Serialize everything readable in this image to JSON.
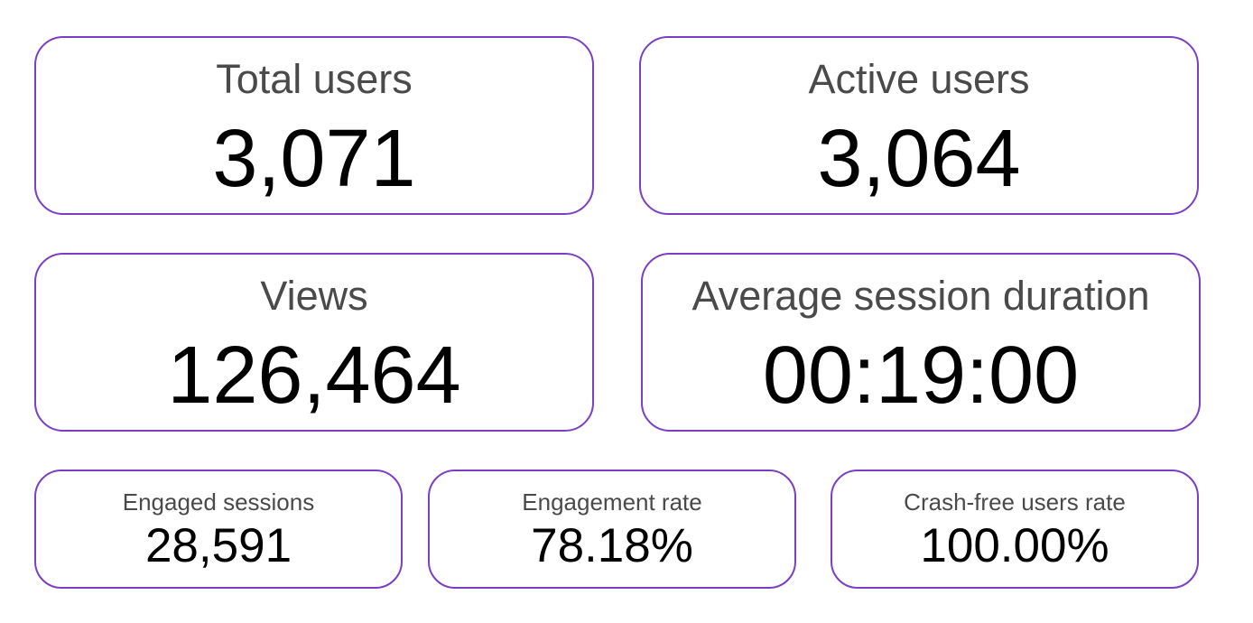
{
  "metrics": {
    "total_users": {
      "label": "Total users",
      "value": "3,071"
    },
    "active_users": {
      "label": "Active users",
      "value": "3,064"
    },
    "views": {
      "label": "Views",
      "value": "126,464"
    },
    "average_session_duration": {
      "label": "Average session duration",
      "value": "00:19:00"
    },
    "engaged_sessions": {
      "label": "Engaged sessions",
      "value": "28,591"
    },
    "engagement_rate": {
      "label": "Engagement rate",
      "value": "78.18%"
    },
    "crash_free_users_rate": {
      "label": "Crash-free users rate",
      "value": "100.00%"
    }
  },
  "colors": {
    "card_border": "#7b3fc4",
    "label_text": "#4a4a4a",
    "value_text": "#000000",
    "background": "#ffffff"
  }
}
